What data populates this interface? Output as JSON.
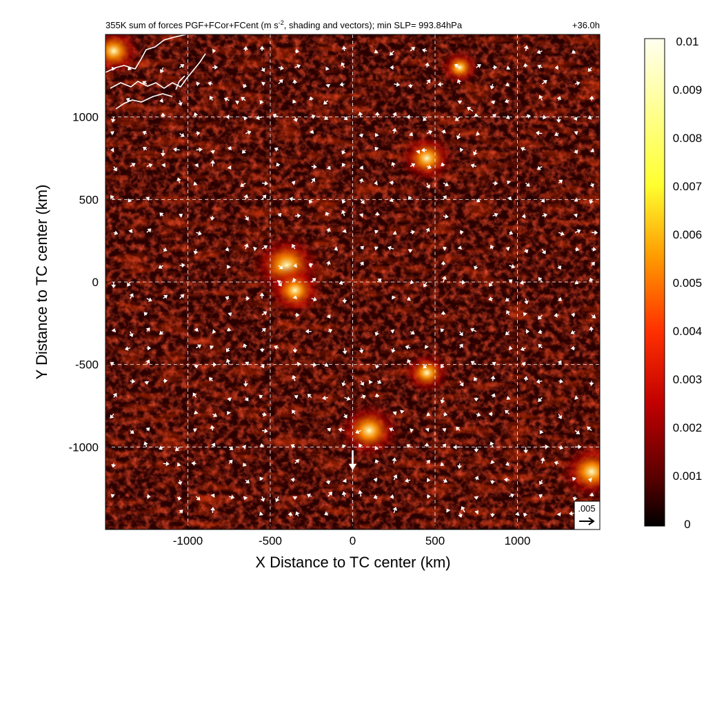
{
  "chart_data": {
    "type": "heatmap",
    "title": "355K sum of forces PGF+FCor+FCent (m s",
    "title_superscript": "-2",
    "title_rest": ", shading and vectors); min SLP= 993.84hPa",
    "time_label": "+36.0h",
    "xlabel": "X Distance to TC center (km)",
    "ylabel": "Y Distance to TC center (km)",
    "xlim": [
      -1500,
      1500
    ],
    "ylim": [
      -1500,
      1500
    ],
    "x_ticks": [
      -1000,
      -500,
      0,
      500,
      1000
    ],
    "y_ticks": [
      1000,
      500,
      0,
      -500,
      -1000
    ],
    "grid": "dashed white every 500 km",
    "colorbar": {
      "min": 0,
      "max": 0.01,
      "tick_labels": [
        "0.01",
        "0.009",
        "0.008",
        "0.007",
        "0.006",
        "0.005",
        "0.004",
        "0.003",
        "0.002",
        "0.001",
        "0"
      ],
      "colormap": [
        "#000000",
        "#5a0000",
        "#c00000",
        "#ff3000",
        "#ff9900",
        "#ffff30",
        "#fffff0"
      ]
    },
    "reference_vector": {
      "label": ".005",
      "value": 0.005
    },
    "hotspots": [
      {
        "x": -400,
        "y": 100,
        "value": 0.006
      },
      {
        "x": -350,
        "y": -50,
        "value": 0.004
      },
      {
        "x": 100,
        "y": -900,
        "value": 0.005
      },
      {
        "x": 450,
        "y": 750,
        "value": 0.004
      },
      {
        "x": 450,
        "y": -550,
        "value": 0.003
      },
      {
        "x": 1450,
        "y": -1150,
        "value": 0.005
      },
      {
        "x": -1450,
        "y": 1400,
        "value": 0.004
      },
      {
        "x": 650,
        "y": 1300,
        "value": 0.002
      }
    ],
    "vectors_large": [
      {
        "x": 0,
        "y": -1020,
        "u": 0,
        "v": -0.0072
      },
      {
        "x": 730,
        "y": 1035,
        "u": -0.0022,
        "v": 0.0015
      },
      {
        "x": 680,
        "y": -1395,
        "u": -0.0012,
        "v": 0.0022
      },
      {
        "x": -330,
        "y": -1420,
        "u": -0.0008,
        "v": 0.0018
      },
      {
        "x": -380,
        "y": -1420,
        "u": 0.0003,
        "v": 0.0016
      },
      {
        "x": 580,
        "y": -1390,
        "u": -0.0006,
        "v": 0.001
      },
      {
        "x": -600,
        "y": 200,
        "u": 0.0012,
        "v": 0.0004
      },
      {
        "x": -340,
        "y": 100,
        "u": -0.0012,
        "v": -0.0002
      },
      {
        "x": -250,
        "y": 100,
        "u": -0.0011,
        "v": 0.0003
      },
      {
        "x": -450,
        "y": 0,
        "u": 0.0009,
        "v": 0.0005
      },
      {
        "x": 110,
        "y": -600,
        "u": -0.0006,
        "v": -0.0011
      },
      {
        "x": 300,
        "y": -780,
        "u": -0.0002,
        "v": -0.0011
      },
      {
        "x": 1000,
        "y": -1410,
        "u": 0.0003,
        "v": 0.001
      },
      {
        "x": -700,
        "y": 1090,
        "u": 0.0007,
        "v": 0.0004
      },
      {
        "x": 400,
        "y": 790,
        "u": 0.0005,
        "v": 0.0006
      },
      {
        "x": -100,
        "y": 200,
        "u": -0.0008,
        "v": -0.0003
      }
    ]
  },
  "colors": {
    "grid": "#ffffff",
    "vector": "#ffffff",
    "coast": "#ffffff",
    "frame": "#000000"
  }
}
